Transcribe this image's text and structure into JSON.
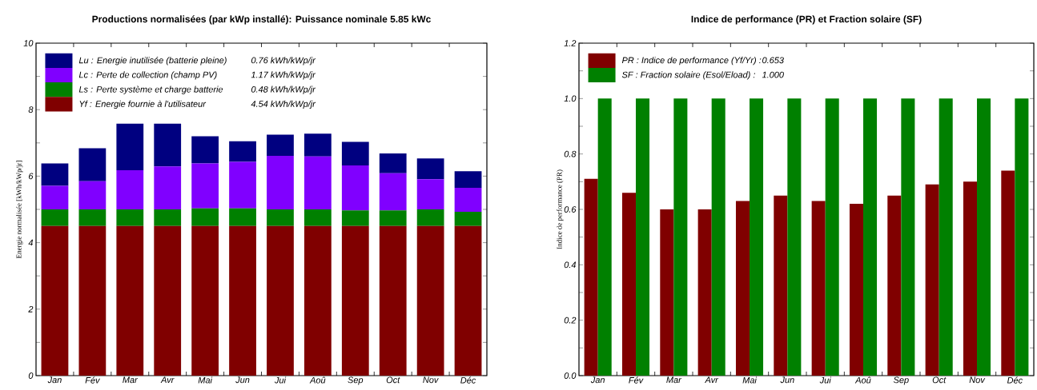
{
  "chart_data": [
    {
      "type": "bar",
      "stacked": true,
      "title": "Productions normalisées  (par kWp installé):  Puissance nominale 5.85 kWc",
      "ylabel": "Energie normalisée  [kWh/kWp/jr]",
      "categories": [
        "Jan",
        "Fév",
        "Mar",
        "Avr",
        "Mai",
        "Jun",
        "Jui",
        "Aoû",
        "Sep",
        "Oct",
        "Nov",
        "Déc"
      ],
      "series": [
        {
          "name": "Yf : Energie fournie à l'utilisateur",
          "color": "#800000",
          "values": [
            4.5,
            4.5,
            4.5,
            4.5,
            4.5,
            4.5,
            4.5,
            4.5,
            4.5,
            4.5,
            4.5,
            4.5
          ]
        },
        {
          "name": "Ls : Perte système et charge batterie",
          "color": "#008000",
          "values": [
            0.5,
            0.5,
            0.5,
            0.5,
            0.53,
            0.53,
            0.5,
            0.5,
            0.47,
            0.47,
            0.5,
            0.43
          ]
        },
        {
          "name": "Lc : Perte de collection (champ PV)",
          "color": "#8000ff",
          "values": [
            0.71,
            0.85,
            1.18,
            1.29,
            1.35,
            1.4,
            1.61,
            1.59,
            1.35,
            1.12,
            0.91,
            0.72
          ]
        },
        {
          "name": "Lu : Energie inutilisée (batterie pleine)",
          "color": "#000080",
          "values": [
            0.67,
            0.99,
            1.4,
            1.29,
            0.82,
            0.62,
            0.64,
            0.69,
            0.71,
            0.59,
            0.62,
            0.5
          ]
        }
      ],
      "annotations": [
        "4.54 kWh/kWp/jr",
        "0.48 kWh/kWp/jr",
        "1.17 kWh/kWp/jr",
        "0.76 kWh/kWp/jr"
      ],
      "ylim": [
        0,
        10
      ],
      "yticks": [
        0,
        2,
        4,
        6,
        8,
        10
      ],
      "legend": "top left"
    },
    {
      "type": "bar",
      "title": "Indice de performance (PR)  et Fraction solaire (SF)",
      "ylabel": "Indice de performance (PR)",
      "categories": [
        "Jan",
        "Fév",
        "Mar",
        "Avr",
        "Mai",
        "Jun",
        "Jui",
        "Aoû",
        "Sep",
        "Oct",
        "Nov",
        "Déc"
      ],
      "series": [
        {
          "name": "PR : Indice de performance  (Yf/Yr) :",
          "color": "#800000",
          "values": [
            0.71,
            0.66,
            0.6,
            0.6,
            0.63,
            0.65,
            0.63,
            0.62,
            0.65,
            0.69,
            0.7,
            0.74
          ]
        },
        {
          "name": "SF : Fraction solaire  (Esol/Eload) :",
          "color": "#008000",
          "values": [
            1,
            1,
            1,
            1,
            1,
            1,
            1,
            1,
            1,
            1,
            1,
            1
          ]
        }
      ],
      "annotations": [
        "0.653",
        "1.000"
      ],
      "ylim": [
        0,
        1.2
      ],
      "yticks": [
        {
          "value": 0,
          "label": "0.0"
        },
        {
          "value": 0.2,
          "label": "0.2"
        },
        {
          "value": 0.4,
          "label": "0.4"
        },
        {
          "value": 0.6,
          "label": "0.6"
        },
        {
          "value": 0.8,
          "label": "0.8"
        },
        {
          "value": 1.0,
          "label": "1.0"
        },
        {
          "value": 1.2,
          "label": "1.2"
        }
      ],
      "legend": "top left"
    }
  ]
}
